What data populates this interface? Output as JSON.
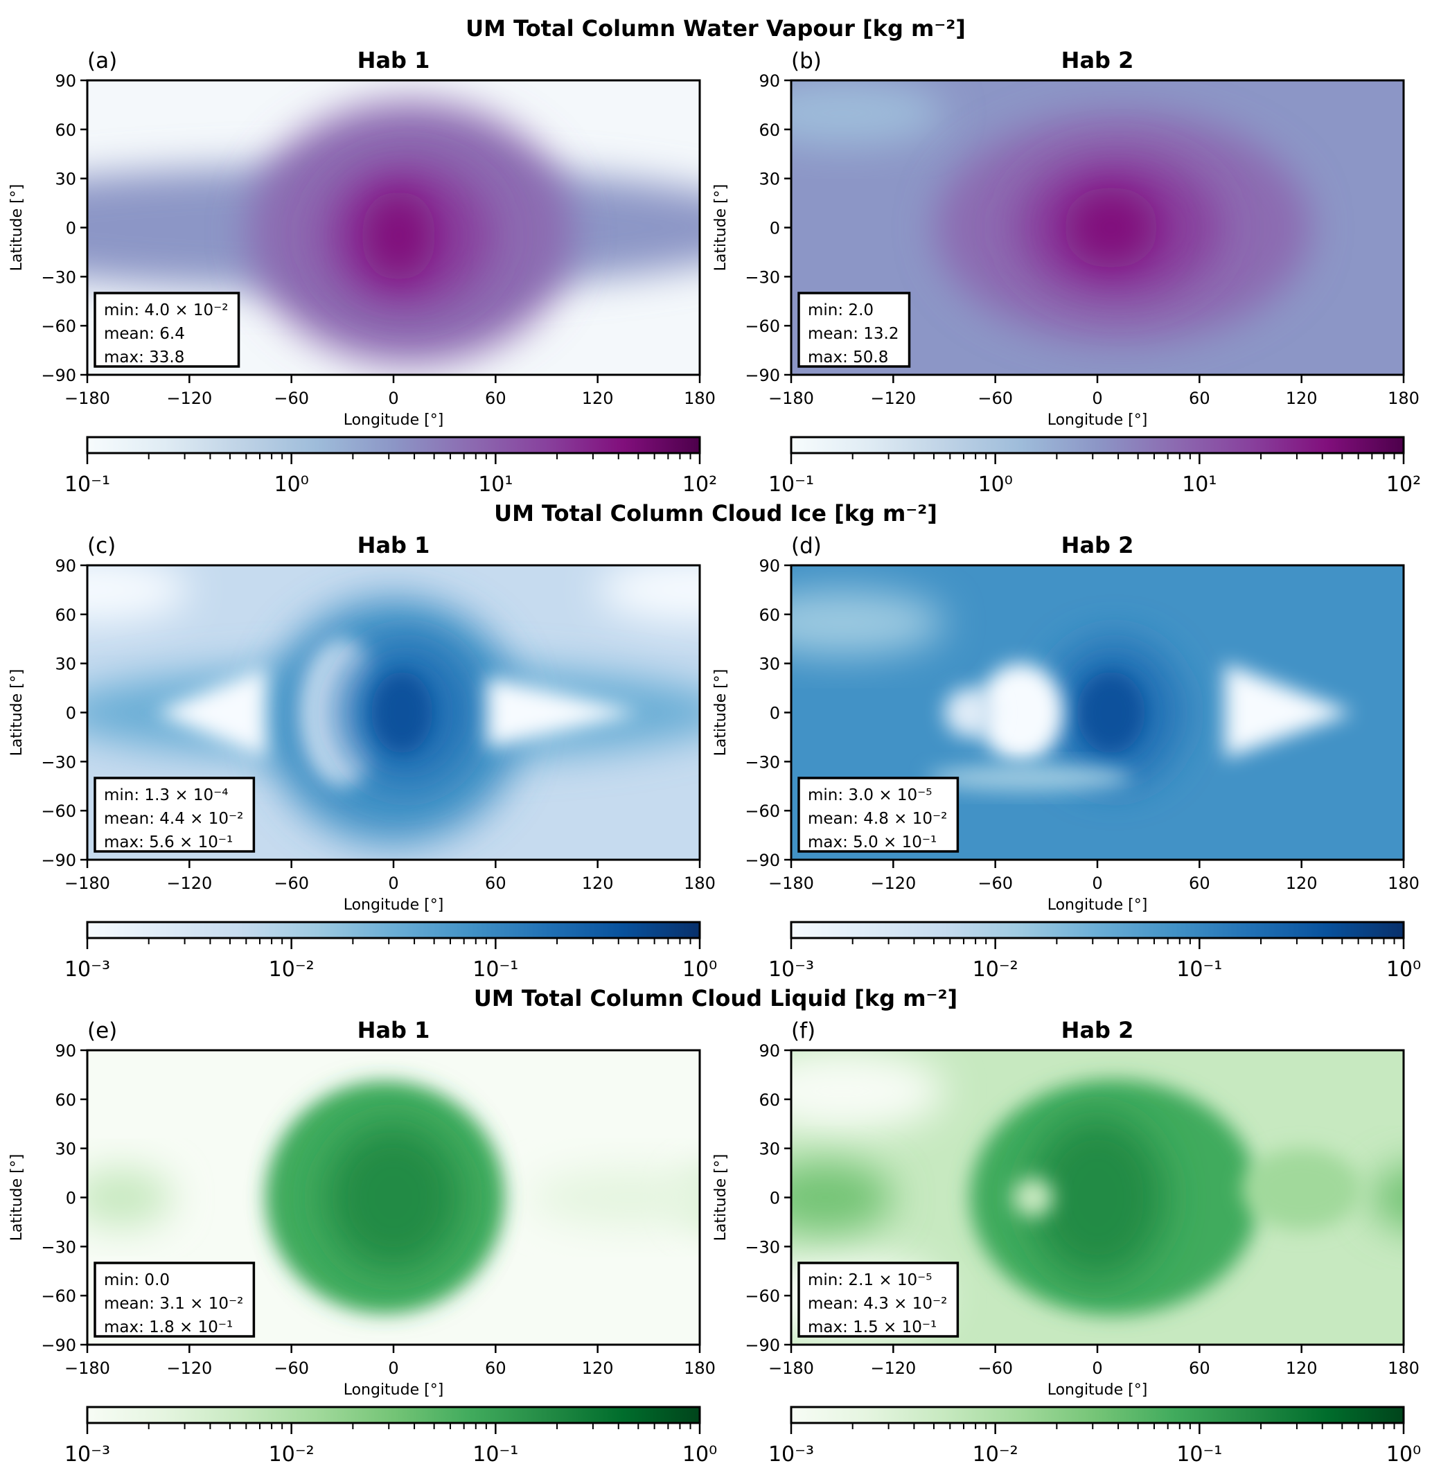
{
  "suptitles": [
    "UM Total Column Water Vapour [kg m⁻²]",
    "UM Total Column Cloud Ice [kg m⁻²]",
    "UM Total Column Cloud Liquid [kg m⁻²]"
  ],
  "chart_data": [
    {
      "type": "heatmap",
      "label": "(a)",
      "title": "Hab 1",
      "colormap": "BuPu",
      "xlabel": "Longitude [°]",
      "ylabel": "Latitude [°]",
      "xlim": [
        -180,
        180
      ],
      "ylim": [
        -90,
        90
      ],
      "xticks": [
        "−180",
        "−120",
        "−60",
        "0",
        "60",
        "120",
        "180"
      ],
      "yticks": [
        "90",
        "60",
        "30",
        "0",
        "−30",
        "−60",
        "−90"
      ],
      "stats": [
        "min: 4.0 × 10⁻²",
        "mean: 6.4",
        "max: 33.8"
      ],
      "colorbar": {
        "scale": "log",
        "range": [
          0.1,
          100
        ],
        "ticks": [
          "10⁻¹",
          "10⁰",
          "10¹",
          "10²"
        ]
      }
    },
    {
      "type": "heatmap",
      "label": "(b)",
      "title": "Hab 2",
      "colormap": "BuPu",
      "xlabel": "Longitude [°]",
      "ylabel": "Latitude [°]",
      "xlim": [
        -180,
        180
      ],
      "ylim": [
        -90,
        90
      ],
      "xticks": [
        "−180",
        "−120",
        "−60",
        "0",
        "60",
        "120",
        "180"
      ],
      "yticks": [
        "90",
        "60",
        "30",
        "0",
        "−30",
        "−60",
        "−90"
      ],
      "stats": [
        "min: 2.0",
        "mean: 13.2",
        "max: 50.8"
      ],
      "colorbar": {
        "scale": "log",
        "range": [
          0.1,
          100
        ],
        "ticks": [
          "10⁻¹",
          "10⁰",
          "10¹",
          "10²"
        ]
      }
    },
    {
      "type": "heatmap",
      "label": "(c)",
      "title": "Hab 1",
      "colormap": "Blues",
      "xlabel": "Longitude [°]",
      "ylabel": "Latitude [°]",
      "xlim": [
        -180,
        180
      ],
      "ylim": [
        -90,
        90
      ],
      "xticks": [
        "−180",
        "−120",
        "−60",
        "0",
        "60",
        "120",
        "180"
      ],
      "yticks": [
        "90",
        "60",
        "30",
        "0",
        "−30",
        "−60",
        "−90"
      ],
      "stats": [
        "min: 1.3 × 10⁻⁴",
        "mean: 4.4 × 10⁻²",
        "max: 5.6 × 10⁻¹"
      ],
      "colorbar": {
        "scale": "log",
        "range": [
          0.001,
          1
        ],
        "ticks": [
          "10⁻³",
          "10⁻²",
          "10⁻¹",
          "10⁰"
        ]
      }
    },
    {
      "type": "heatmap",
      "label": "(d)",
      "title": "Hab 2",
      "colormap": "Blues",
      "xlabel": "Longitude [°]",
      "ylabel": "Latitude [°]",
      "xlim": [
        -180,
        180
      ],
      "ylim": [
        -90,
        90
      ],
      "xticks": [
        "−180",
        "−120",
        "−60",
        "0",
        "60",
        "120",
        "180"
      ],
      "yticks": [
        "90",
        "60",
        "30",
        "0",
        "−30",
        "−60",
        "−90"
      ],
      "stats": [
        "min: 3.0 × 10⁻⁵",
        "mean: 4.8 × 10⁻²",
        "max: 5.0 × 10⁻¹"
      ],
      "colorbar": {
        "scale": "log",
        "range": [
          0.001,
          1
        ],
        "ticks": [
          "10⁻³",
          "10⁻²",
          "10⁻¹",
          "10⁰"
        ]
      }
    },
    {
      "type": "heatmap",
      "label": "(e)",
      "title": "Hab 1",
      "colormap": "Greens",
      "xlabel": "Longitude [°]",
      "ylabel": "Latitude [°]",
      "xlim": [
        -180,
        180
      ],
      "ylim": [
        -90,
        90
      ],
      "xticks": [
        "−180",
        "−120",
        "−60",
        "0",
        "60",
        "120",
        "180"
      ],
      "yticks": [
        "90",
        "60",
        "30",
        "0",
        "−30",
        "−60",
        "−90"
      ],
      "stats": [
        "min: 0.0",
        "mean: 3.1 × 10⁻²",
        "max: 1.8 × 10⁻¹"
      ],
      "colorbar": {
        "scale": "log",
        "range": [
          0.001,
          1
        ],
        "ticks": [
          "10⁻³",
          "10⁻²",
          "10⁻¹",
          "10⁰"
        ]
      }
    },
    {
      "type": "heatmap",
      "label": "(f)",
      "title": "Hab 2",
      "colormap": "Greens",
      "xlabel": "Longitude [°]",
      "ylabel": "Latitude [°]",
      "xlim": [
        -180,
        180
      ],
      "ylim": [
        -90,
        90
      ],
      "xticks": [
        "−180",
        "−120",
        "−60",
        "0",
        "60",
        "120",
        "180"
      ],
      "yticks": [
        "90",
        "60",
        "30",
        "0",
        "−30",
        "−60",
        "−90"
      ],
      "stats": [
        "min: 2.1 × 10⁻⁵",
        "mean: 4.3 × 10⁻²",
        "max: 1.5 × 10⁻¹"
      ],
      "colorbar": {
        "scale": "log",
        "range": [
          0.001,
          1
        ],
        "ticks": [
          "10⁻³",
          "10⁻²",
          "10⁻¹",
          "10⁰"
        ]
      }
    }
  ],
  "colormaps": {
    "BuPu": [
      "#f7fcfd",
      "#e0ecf4",
      "#bfd3e6",
      "#9ebcda",
      "#8c96c6",
      "#8c6bb1",
      "#88419d",
      "#810f7c",
      "#4d004b"
    ],
    "Blues": [
      "#f7fbff",
      "#deebf7",
      "#c6dbef",
      "#9ecae1",
      "#6baed6",
      "#4292c6",
      "#2171b5",
      "#08519c",
      "#08306b"
    ],
    "Greens": [
      "#f7fcf5",
      "#e5f5e0",
      "#c7e9c0",
      "#a1d99b",
      "#74c476",
      "#41ab5d",
      "#238b45",
      "#006d2c",
      "#00441b"
    ]
  }
}
